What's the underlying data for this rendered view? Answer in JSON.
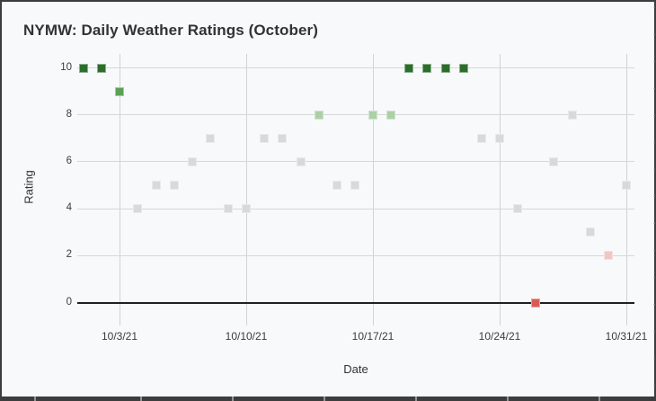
{
  "frame": {
    "background": "#f8f9fa",
    "border_color": "#3d3d3d",
    "grid_color": "#d7d7d7",
    "axis_line_color": "#1f1f1f",
    "text_color": "#3c3c3c"
  },
  "chart_data": {
    "type": "scatter",
    "title": "NYMW: Daily Weather Ratings (October)",
    "xlabel": "Date",
    "ylabel": "Rating",
    "marker": "square",
    "grid": true,
    "legend": "none",
    "ylim": [
      0,
      10
    ],
    "y_ticks": [
      0,
      2,
      4,
      6,
      8,
      10
    ],
    "x_tick_labels": [
      "10/3/21",
      "10/10/21",
      "10/17/21",
      "10/24/21",
      "10/31/21"
    ],
    "x_tick_days": [
      3,
      10,
      17,
      24,
      31
    ],
    "x_range_days": [
      1,
      31
    ],
    "palette": {
      "green-dark": "#2b6d2b",
      "green-mid": "#5ba155",
      "green-light": "#abd0a5",
      "gray": "#d9d9d9",
      "pink": "#f3c6c6",
      "red": "#d85c56"
    },
    "points": [
      {
        "date": "10/1/21",
        "day": 1,
        "rating": 10,
        "color": "green-dark"
      },
      {
        "date": "10/2/21",
        "day": 2,
        "rating": 10,
        "color": "green-dark"
      },
      {
        "date": "10/3/21",
        "day": 3,
        "rating": 9,
        "color": "green-mid"
      },
      {
        "date": "10/4/21",
        "day": 4,
        "rating": 4,
        "color": "gray"
      },
      {
        "date": "10/5/21",
        "day": 5,
        "rating": 5,
        "color": "gray"
      },
      {
        "date": "10/6/21",
        "day": 6,
        "rating": 5,
        "color": "gray"
      },
      {
        "date": "10/7/21",
        "day": 7,
        "rating": 6,
        "color": "gray"
      },
      {
        "date": "10/8/21",
        "day": 8,
        "rating": 7,
        "color": "gray"
      },
      {
        "date": "10/9/21",
        "day": 9,
        "rating": 4,
        "color": "gray"
      },
      {
        "date": "10/10/21",
        "day": 10,
        "rating": 4,
        "color": "gray"
      },
      {
        "date": "10/11/21",
        "day": 11,
        "rating": 7,
        "color": "gray"
      },
      {
        "date": "10/12/21",
        "day": 12,
        "rating": 7,
        "color": "gray"
      },
      {
        "date": "10/13/21",
        "day": 13,
        "rating": 6,
        "color": "gray"
      },
      {
        "date": "10/14/21",
        "day": 14,
        "rating": 8,
        "color": "green-light"
      },
      {
        "date": "10/15/21",
        "day": 15,
        "rating": 5,
        "color": "gray"
      },
      {
        "date": "10/16/21",
        "day": 16,
        "rating": 5,
        "color": "gray"
      },
      {
        "date": "10/17/21",
        "day": 17,
        "rating": 8,
        "color": "green-light"
      },
      {
        "date": "10/18/21",
        "day": 18,
        "rating": 8,
        "color": "green-light"
      },
      {
        "date": "10/19/21",
        "day": 19,
        "rating": 10,
        "color": "green-dark"
      },
      {
        "date": "10/20/21",
        "day": 20,
        "rating": 10,
        "color": "green-dark"
      },
      {
        "date": "10/21/21",
        "day": 21,
        "rating": 10,
        "color": "green-dark"
      },
      {
        "date": "10/22/21",
        "day": 22,
        "rating": 10,
        "color": "green-dark"
      },
      {
        "date": "10/23/21",
        "day": 23,
        "rating": 7,
        "color": "gray"
      },
      {
        "date": "10/24/21",
        "day": 24,
        "rating": 7,
        "color": "gray"
      },
      {
        "date": "10/25/21",
        "day": 25,
        "rating": 4,
        "color": "gray"
      },
      {
        "date": "10/26/21",
        "day": 26,
        "rating": 0,
        "color": "red"
      },
      {
        "date": "10/27/21",
        "day": 27,
        "rating": 6,
        "color": "gray"
      },
      {
        "date": "10/28/21",
        "day": 28,
        "rating": 8,
        "color": "gray"
      },
      {
        "date": "10/29/21",
        "day": 29,
        "rating": 3,
        "color": "gray"
      },
      {
        "date": "10/30/21",
        "day": 30,
        "rating": 2,
        "color": "pink"
      },
      {
        "date": "10/31/21",
        "day": 31,
        "rating": 5,
        "color": "gray"
      }
    ]
  }
}
